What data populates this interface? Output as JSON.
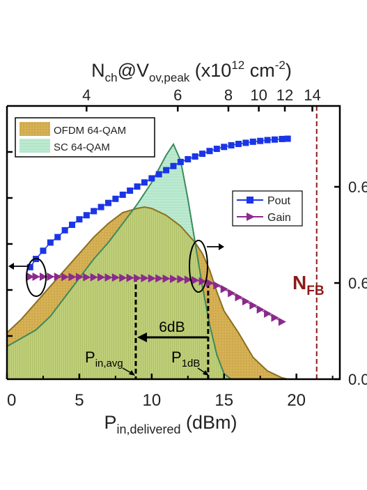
{
  "chart_data": {
    "type": "line",
    "xlabel_main": "P",
    "xlabel_sub": "in,delivered",
    "xlabel_unit": " (dBm)",
    "xlim": [
      0,
      23
    ],
    "xticks": [
      0,
      5,
      10,
      15,
      20
    ],
    "x2label": {
      "main": "N",
      "sub1": "ch",
      "mid": "@V",
      "sub2": "ov,peak",
      "unit_a": " (x10",
      "exp1": "12",
      "unit_b": " cm",
      "exp2": "-2",
      "unit_c": ")"
    },
    "x2ticks": [
      {
        "label": "4",
        "x": 5.5
      },
      {
        "label": "6",
        "x": 11.8
      },
      {
        "label": "8",
        "x": 15.3
      },
      {
        "label": "10",
        "x": 17.4
      },
      {
        "label": "12",
        "x": 19.2
      },
      {
        "label": "14",
        "x": 21.1
      }
    ],
    "right_tick_labels": [
      "0.6",
      "0.6",
      "0.0"
    ],
    "legend_left": [
      {
        "name": "OFDM 64-QAM",
        "color": "#d8b25a"
      },
      {
        "name": "SC 64-QAM",
        "color": "#b6e6cc"
      }
    ],
    "legend_right": [
      {
        "name": "Pout",
        "color": "#1a35e6",
        "marker": "square"
      },
      {
        "name": "Gain",
        "color": "#8a2a8c",
        "marker": "triangle"
      }
    ],
    "series": [
      {
        "name": "OFDM 64-QAM",
        "kind": "area",
        "fill": "#d9b559",
        "stroke": "#8b6f1e",
        "x": [
          0,
          1,
          2,
          3,
          4,
          5,
          6,
          7,
          8,
          9,
          9.5,
          10,
          11,
          12,
          13,
          13.5,
          14,
          14.5,
          15,
          16,
          17,
          18,
          19,
          19.4
        ],
        "y": [
          0.17,
          0.22,
          0.28,
          0.34,
          0.4,
          0.46,
          0.52,
          0.57,
          0.61,
          0.625,
          0.63,
          0.625,
          0.6,
          0.56,
          0.5,
          0.46,
          0.4,
          0.32,
          0.25,
          0.17,
          0.08,
          0.03,
          0.005,
          0
        ]
      },
      {
        "name": "SC 64-QAM",
        "kind": "area",
        "fill": "#bdebd2",
        "stroke": "#3a8a5c",
        "x": [
          0,
          1,
          2,
          3,
          4,
          5,
          6,
          7,
          8,
          9,
          10,
          10.5,
          11,
          11.5,
          12,
          12.5,
          13,
          13.5,
          14,
          14.5,
          15,
          15.5
        ],
        "y": [
          0.12,
          0.15,
          0.18,
          0.23,
          0.3,
          0.37,
          0.44,
          0.5,
          0.57,
          0.64,
          0.72,
          0.77,
          0.82,
          0.86,
          0.8,
          0.66,
          0.5,
          0.34,
          0.2,
          0.09,
          0.02,
          0
        ]
      },
      {
        "name": "Pout",
        "kind": "line",
        "color": "#1a35e6",
        "marker": "square",
        "x": [
          1.6,
          2,
          2.5,
          3,
          3.5,
          4,
          4.5,
          5,
          5.5,
          6,
          6.5,
          7,
          7.5,
          8,
          8.5,
          9,
          9.5,
          10,
          10.5,
          11,
          11.5,
          12,
          12.5,
          13,
          13.5,
          14,
          14.5,
          15,
          15.5,
          16,
          16.5,
          17,
          17.5,
          18,
          18.5,
          19,
          19.4
        ],
        "y": [
          0.41,
          0.44,
          0.47,
          0.5,
          0.52,
          0.545,
          0.565,
          0.585,
          0.6,
          0.615,
          0.63,
          0.645,
          0.66,
          0.675,
          0.69,
          0.705,
          0.72,
          0.735,
          0.75,
          0.765,
          0.78,
          0.795,
          0.805,
          0.815,
          0.825,
          0.835,
          0.843,
          0.85,
          0.856,
          0.861,
          0.865,
          0.869,
          0.872,
          0.875,
          0.877,
          0.879,
          0.88
        ]
      },
      {
        "name": "Gain",
        "kind": "line",
        "color": "#8a2a8c",
        "marker": "triangle",
        "x": [
          1.6,
          2,
          2.5,
          3,
          3.5,
          4,
          4.5,
          5,
          5.5,
          6,
          6.5,
          7,
          7.5,
          8,
          8.5,
          9,
          9.5,
          10,
          10.5,
          11,
          11.5,
          12,
          12.5,
          13,
          13.5,
          14,
          14.5,
          15,
          15.5,
          16,
          16.5,
          17,
          17.5,
          18,
          18.5,
          19
        ],
        "y": [
          0.375,
          0.375,
          0.375,
          0.375,
          0.375,
          0.374,
          0.374,
          0.374,
          0.373,
          0.373,
          0.373,
          0.372,
          0.372,
          0.371,
          0.371,
          0.37,
          0.37,
          0.369,
          0.369,
          0.368,
          0.367,
          0.366,
          0.364,
          0.362,
          0.358,
          0.352,
          0.343,
          0.33,
          0.315,
          0.3,
          0.285,
          0.27,
          0.255,
          0.24,
          0.225,
          0.21
        ]
      }
    ],
    "nfb": {
      "x": 21.4,
      "label": "N",
      "sub": "FB",
      "color": "#8b1a1a"
    },
    "annotations": {
      "pin_avg": {
        "x": 8.9,
        "main": "P",
        "sub": "in,avg"
      },
      "p1db": {
        "x": 13.9,
        "main": "P",
        "sub": "1dB"
      },
      "delta": {
        "label": "6dB",
        "from": 13.9,
        "to": 8.9
      }
    }
  }
}
